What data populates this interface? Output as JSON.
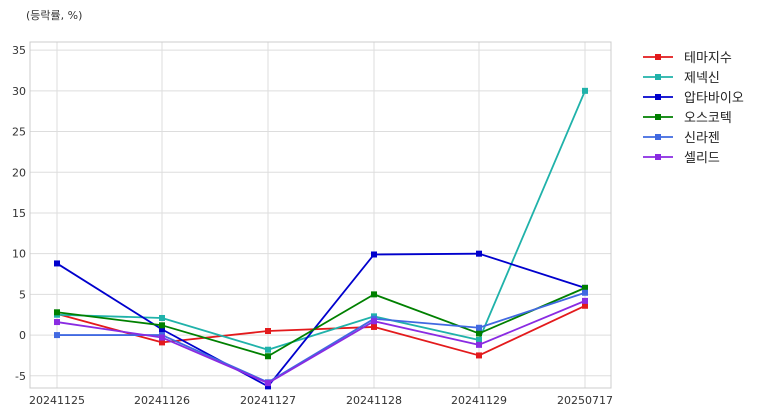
{
  "chart_data": {
    "type": "line",
    "title": "",
    "unit_label": "(등락률, %)",
    "xlabel": "",
    "ylabel": "",
    "categories": [
      "20241125",
      "20241126",
      "20241127",
      "20241128",
      "20241129",
      "20250717"
    ],
    "ylim": [
      -6.5,
      36
    ],
    "yticks": [
      -5,
      0,
      5,
      10,
      15,
      20,
      25,
      30,
      35
    ],
    "grid": true,
    "legend_position": "outside-right",
    "series": [
      {
        "name": "테마지수",
        "color": "#e31a1c",
        "values": [
          2.6,
          -0.9,
          0.5,
          1.0,
          -2.5,
          3.6
        ]
      },
      {
        "name": "제넥신",
        "color": "#20b2aa",
        "values": [
          2.5,
          2.1,
          -1.8,
          2.3,
          -0.6,
          30.0
        ]
      },
      {
        "name": "압타바이오",
        "color": "#0000cd",
        "values": [
          8.8,
          0.7,
          -6.3,
          9.9,
          10.0,
          5.8
        ]
      },
      {
        "name": "오스코텍",
        "color": "#008000",
        "values": [
          2.8,
          1.2,
          -2.6,
          5.0,
          0.2,
          5.8
        ]
      },
      {
        "name": "신라젠",
        "color": "#4169e1",
        "values": [
          0.0,
          0.0,
          -5.8,
          2.0,
          0.9,
          5.2
        ]
      },
      {
        "name": "셀리드",
        "color": "#8a2be2",
        "values": [
          1.6,
          -0.3,
          -5.9,
          1.7,
          -1.2,
          4.2
        ]
      }
    ]
  }
}
